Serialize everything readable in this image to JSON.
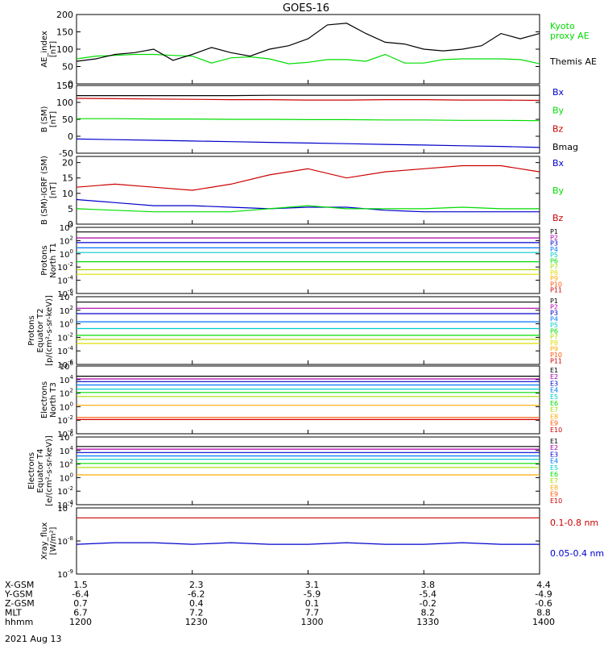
{
  "title": "GOES-16",
  "date_label": "2021 Aug 13",
  "footer": {
    "rows": [
      {
        "label": "X-GSM",
        "values": [
          "1.5",
          "2.3",
          "3.1",
          "3.8",
          "4.4"
        ]
      },
      {
        "label": "Y-GSM",
        "values": [
          "-6.4",
          "-6.2",
          "-5.9",
          "-5.4",
          "-4.9"
        ]
      },
      {
        "label": "Z-GSM",
        "values": [
          "0.7",
          "0.4",
          "0.1",
          "-0.2",
          "-0.6"
        ]
      },
      {
        "label": "MLT",
        "values": [
          "6.7",
          "7.2",
          "7.7",
          "8.2",
          "8.8"
        ]
      },
      {
        "label": "hhmm",
        "values": [
          "1200",
          "1230",
          "1300",
          "1330",
          "1400"
        ]
      }
    ]
  },
  "colors": {
    "black": "#000000",
    "green": "#00dd00",
    "blue": "#0000cc",
    "red": "#cc0000"
  },
  "chart_data": [
    {
      "type": "line",
      "ylabel": "AE_index\n[nT]",
      "ylim": [
        0,
        200
      ],
      "yticks": [
        0,
        50,
        100,
        150,
        200
      ],
      "ytick_labels": [
        "0",
        "50",
        "100",
        "150",
        "200"
      ],
      "x": [
        "1200",
        "1205",
        "1210",
        "1215",
        "1220",
        "1225",
        "1230",
        "1235",
        "1240",
        "1245",
        "1250",
        "1255",
        "1300",
        "1305",
        "1310",
        "1315",
        "1320",
        "1325",
        "1330",
        "1335",
        "1340",
        "1345",
        "1350",
        "1355",
        "1400"
      ],
      "series": [
        {
          "name": "Kyoto\nproxy AE",
          "color": "#00dd00",
          "values": [
            72,
            80,
            82,
            85,
            85,
            82,
            80,
            60,
            75,
            78,
            72,
            58,
            62,
            70,
            70,
            65,
            85,
            60,
            60,
            70,
            72,
            72,
            72,
            70,
            58
          ]
        },
        {
          "name": "Themis AE",
          "color": "#000000",
          "values": [
            65,
            72,
            85,
            90,
            100,
            68,
            85,
            105,
            90,
            80,
            100,
            110,
            130,
            170,
            175,
            145,
            120,
            115,
            100,
            95,
            100,
            110,
            145,
            130,
            145
          ]
        }
      ],
      "legend_placement": "right"
    },
    {
      "type": "line",
      "ylabel": "B (SM)\n[nT]",
      "ylim": [
        -50,
        150
      ],
      "yticks": [
        -50,
        0,
        50,
        100,
        150
      ],
      "ytick_labels": [
        "-50",
        "0",
        "50",
        "100",
        "150"
      ],
      "series": [
        {
          "name": "Bx",
          "color": "#0000cc",
          "values": [
            -8,
            -10,
            -12,
            -14,
            -16,
            -18,
            -20,
            -22,
            -24,
            -26,
            -28,
            -30,
            -33
          ]
        },
        {
          "name": "By",
          "color": "#00dd00",
          "values": [
            52,
            52,
            51,
            51,
            50,
            50,
            49,
            49,
            48,
            48,
            47,
            47,
            46
          ]
        },
        {
          "name": "Bz",
          "color": "#cc0000",
          "values": [
            112,
            111,
            110,
            109,
            108,
            108,
            107,
            107,
            108,
            108,
            107,
            107,
            106
          ]
        },
        {
          "name": "Bmag",
          "color": "#000000",
          "values": [
            120,
            120,
            120,
            120,
            120,
            121,
            121,
            121,
            121,
            121,
            121,
            121,
            121
          ]
        }
      ],
      "legend_placement": "right"
    },
    {
      "type": "line",
      "ylabel": "B (SM)-IGRF (SM)\n[nT]",
      "ylim": [
        0,
        22
      ],
      "yticks": [
        0,
        5,
        10,
        15,
        20
      ],
      "ytick_labels": [
        "0",
        "5",
        "10",
        "15",
        "20"
      ],
      "series": [
        {
          "name": "Bx",
          "color": "#0000cc",
          "values": [
            8,
            7,
            6,
            6,
            5.5,
            5,
            5.5,
            5.5,
            4.5,
            4,
            4,
            4,
            4
          ]
        },
        {
          "name": "By",
          "color": "#00dd00",
          "values": [
            5,
            4.5,
            4,
            4,
            4,
            5,
            6,
            5,
            5,
            5,
            5.5,
            5,
            5
          ]
        },
        {
          "name": "Bz",
          "color": "#cc0000",
          "values": [
            12,
            13,
            12,
            11,
            13,
            16,
            18,
            15,
            17,
            18,
            19,
            19,
            17
          ]
        }
      ],
      "legend_placement": "right"
    },
    {
      "type": "line",
      "ylabel": "Protons\nNorth T1",
      "yscale": "log",
      "ylim_exp": [
        -6,
        4
      ],
      "ytick_exps": [
        -6,
        -4,
        -2,
        0,
        2,
        4
      ],
      "series": [
        {
          "name": "P1",
          "color": "#000000",
          "values": [
            3.3
          ]
        },
        {
          "name": "P2",
          "color": "#aa00aa",
          "values": [
            2.4
          ]
        },
        {
          "name": "P3",
          "color": "#0000cc",
          "values": [
            1.7
          ]
        },
        {
          "name": "P4",
          "color": "#0077ff",
          "values": [
            0.9
          ]
        },
        {
          "name": "P5",
          "color": "#00cccc",
          "values": [
            0.2
          ]
        },
        {
          "name": "P6",
          "color": "#00dd00",
          "values": [
            -1.2
          ]
        },
        {
          "name": "P7",
          "color": "#aadd00",
          "values": [
            -2.4
          ]
        },
        {
          "name": "P8",
          "color": "#dddd00",
          "values": [
            -3.1
          ]
        },
        {
          "name": "P9",
          "color": "#ffaa00",
          "values": []
        },
        {
          "name": "P10",
          "color": "#ff5500",
          "values": []
        },
        {
          "name": "P11",
          "color": "#cc0000",
          "values": []
        }
      ],
      "legend_placement": "right"
    },
    {
      "type": "line",
      "ylabel": "Protons\nEquator T2\n[p/(cm²-s-sr-keV)]",
      "yscale": "log",
      "ylim_exp": [
        -6,
        4
      ],
      "ytick_exps": [
        -6,
        -4,
        -2,
        0,
        2,
        4
      ],
      "series": [
        {
          "name": "P1",
          "color": "#000000",
          "values": [
            3.2
          ]
        },
        {
          "name": "P2",
          "color": "#aa00aa",
          "values": [
            2.3
          ]
        },
        {
          "name": "P3",
          "color": "#0000cc",
          "values": [
            1.5
          ]
        },
        {
          "name": "P4",
          "color": "#0077ff",
          "values": [
            0.3
          ]
        },
        {
          "name": "P5",
          "color": "#00cccc",
          "values": [
            -0.7
          ]
        },
        {
          "name": "P6",
          "color": "#00dd00",
          "values": [
            -1.7
          ]
        },
        {
          "name": "P7",
          "color": "#aadd00",
          "values": [
            -2.3
          ]
        },
        {
          "name": "P8",
          "color": "#dddd00",
          "values": [
            -2.9
          ]
        },
        {
          "name": "P9",
          "color": "#ffaa00",
          "values": []
        },
        {
          "name": "P10",
          "color": "#ff5500",
          "values": []
        },
        {
          "name": "P11",
          "color": "#cc0000",
          "values": []
        }
      ],
      "legend_placement": "right"
    },
    {
      "type": "line",
      "ylabel": "Electrons\nNorth T3",
      "yscale": "log",
      "ylim_exp": [
        -4,
        6
      ],
      "ytick_exps": [
        -4,
        -2,
        0,
        2,
        4,
        6
      ],
      "series": [
        {
          "name": "E1",
          "color": "#000000",
          "values": [
            4.5
          ]
        },
        {
          "name": "E2",
          "color": "#aa00aa",
          "values": [
            4.1
          ]
        },
        {
          "name": "E3",
          "color": "#0000cc",
          "values": [
            3.7
          ]
        },
        {
          "name": "E4",
          "color": "#0077ff",
          "values": [
            3.2
          ]
        },
        {
          "name": "E5",
          "color": "#00cccc",
          "values": [
            2.6
          ]
        },
        {
          "name": "E6",
          "color": "#00dd00",
          "values": [
            2.1
          ]
        },
        {
          "name": "E7",
          "color": "#aadd00",
          "values": [
            1.5
          ]
        },
        {
          "name": "E8",
          "color": "#ffaa00",
          "values": [
            0.2
          ]
        },
        {
          "name": "E9",
          "color": "#ff5500",
          "values": [
            -1.6
          ]
        },
        {
          "name": "E10",
          "color": "#cc0000",
          "values": [
            -1.9
          ]
        }
      ],
      "legend_placement": "right"
    },
    {
      "type": "line",
      "ylabel": "Electrons\nEquator T4\n[e/(cm²-s-sr-keV)]",
      "yscale": "log",
      "ylim_exp": [
        -4,
        6
      ],
      "ytick_exps": [
        -4,
        -2,
        0,
        2,
        4,
        6
      ],
      "series": [
        {
          "name": "E1",
          "color": "#000000",
          "values": [
            4.6
          ]
        },
        {
          "name": "E2",
          "color": "#aa00aa",
          "values": [
            4.2
          ]
        },
        {
          "name": "E3",
          "color": "#0000cc",
          "values": [
            3.7
          ]
        },
        {
          "name": "E4",
          "color": "#0077ff",
          "values": [
            3.2
          ]
        },
        {
          "name": "E5",
          "color": "#00cccc",
          "values": [
            2.7
          ]
        },
        {
          "name": "E6",
          "color": "#00dd00",
          "values": [
            2.1
          ]
        },
        {
          "name": "E7",
          "color": "#aadd00",
          "values": [
            1.5
          ]
        },
        {
          "name": "E8",
          "color": "#ffaa00",
          "values": [
            0.4
          ]
        },
        {
          "name": "E9",
          "color": "#ff5500",
          "values": []
        },
        {
          "name": "E10",
          "color": "#cc0000",
          "values": []
        }
      ],
      "legend_placement": "right"
    },
    {
      "type": "line",
      "ylabel": "Xray_flux\n[W/m²]",
      "yscale": "log",
      "ylim_exp": [
        -9,
        -7
      ],
      "ytick_exps": [
        -9,
        -8,
        -7
      ],
      "series": [
        {
          "name": "0.1-0.8 nm",
          "color": "#cc0000",
          "values": [
            -7.3,
            -7.3,
            -7.3,
            -7.3,
            -7.3,
            -7.3,
            -7.3,
            -7.3,
            -7.3,
            -7.3,
            -7.3,
            -7.3,
            -7.3
          ]
        },
        {
          "name": "0.05-0.4 nm",
          "color": "#0000cc",
          "values": [
            -8.1,
            -8.05,
            -8.05,
            -8.1,
            -8.05,
            -8.1,
            -8.1,
            -8.05,
            -8.1,
            -8.1,
            -8.05,
            -8.1,
            -8.1
          ]
        }
      ],
      "legend_placement": "right"
    }
  ]
}
